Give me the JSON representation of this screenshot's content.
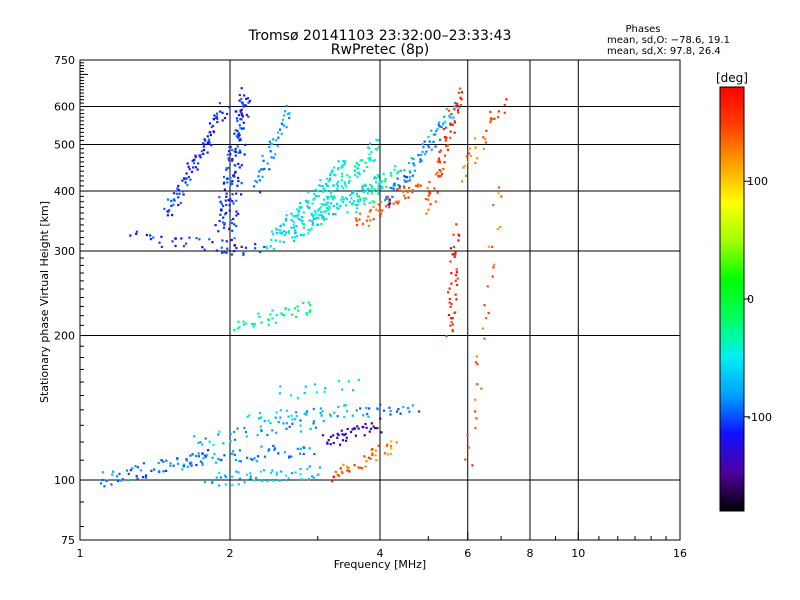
{
  "chart_data": {
    "type": "scatter",
    "title": "Tromsø 20141103 23:32:00–23:33:43",
    "subtitle": "RwPretec (8p)",
    "xlabel": "Frequency [MHz]",
    "ylabel": "Stationary phase Virtual Height [km]",
    "x_scale": "log",
    "y_scale": "log",
    "xlim": [
      1,
      16
    ],
    "ylim": [
      75,
      750
    ],
    "x_ticks": [
      1,
      2,
      4,
      6,
      8,
      10,
      16
    ],
    "y_ticks": [
      75,
      100,
      200,
      300,
      400,
      500,
      600,
      750
    ],
    "grid": true,
    "stats": {
      "heading": "Phases",
      "line1": "mean, sd,O:  −78.6, 19.1",
      "line2": "mean, sd,X:  97.8, 26.4"
    },
    "colorbar": {
      "label": "[deg]",
      "ticks": [
        100,
        0,
        -100
      ],
      "range": [
        -180,
        180
      ],
      "colors": [
        "#000000",
        "#5000a0",
        "#1010ff",
        "#00a0ff",
        "#00f0f0",
        "#00ff60",
        "#00ff00",
        "#a0ff00",
        "#ffff00",
        "#ffa000",
        "#ff4000",
        "#ff0000"
      ]
    },
    "series": [
      {
        "x": [
          1.29,
          2.34
        ],
        "y": [
          320,
          300
        ],
        "values": [
          -110,
          -110
        ],
        "n": 40
      },
      {
        "x": [
          1.5,
          1.95
        ],
        "y": [
          360,
          600
        ],
        "values": [
          -105,
          -115
        ],
        "n": 90
      },
      {
        "x": [
          1.9,
          2.12
        ],
        "y": [
          330,
          630
        ],
        "values": [
          -110,
          -100
        ],
        "n": 80
      },
      {
        "x": [
          2.0,
          2.15
        ],
        "y": [
          300,
          650
        ],
        "values": [
          -100,
          -120
        ],
        "n": 70
      },
      {
        "x": [
          2.25,
          2.62
        ],
        "y": [
          400,
          600
        ],
        "values": [
          -90,
          -80
        ],
        "n": 40
      },
      {
        "x": [
          2.4,
          3.4
        ],
        "y": [
          310,
          460
        ],
        "values": [
          -55,
          -50
        ],
        "n": 100
      },
      {
        "x": [
          2.6,
          4.0
        ],
        "y": [
          320,
          420
        ],
        "values": [
          -55,
          -45
        ],
        "n": 100
      },
      {
        "x": [
          2.9,
          4.0
        ],
        "y": [
          350,
          500
        ],
        "values": [
          -45,
          -40
        ],
        "n": 80
      },
      {
        "x": [
          3.5,
          4.3
        ],
        "y": [
          360,
          440
        ],
        "values": [
          -40,
          -30
        ],
        "n": 40
      },
      {
        "x": [
          3.6,
          4.8
        ],
        "y": [
          340,
          420
        ],
        "values": [
          130,
          150
        ],
        "n": 50
      },
      {
        "x": [
          4.1,
          5.7
        ],
        "y": [
          380,
          600
        ],
        "values": [
          -90,
          -75
        ],
        "n": 80
      },
      {
        "x": [
          5.0,
          5.8
        ],
        "y": [
          370,
          640
        ],
        "values": [
          140,
          160
        ],
        "n": 60
      },
      {
        "x": [
          5.8,
          7.1
        ],
        "y": [
          430,
          620
        ],
        "values": [
          125,
          150
        ],
        "n": 30
      },
      {
        "x": [
          2.05,
          2.95
        ],
        "y": [
          210,
          230
        ],
        "values": [
          -40,
          -20
        ],
        "n": 40
      },
      {
        "x": [
          1.1,
          1.8
        ],
        "y": [
          100,
          112
        ],
        "values": [
          -90,
          -90
        ],
        "n": 60
      },
      {
        "x": [
          1.8,
          3.05
        ],
        "y": [
          100,
          104
        ],
        "values": [
          -70,
          -60
        ],
        "n": 50
      },
      {
        "x": [
          1.65,
          2.9
        ],
        "y": [
          110,
          116
        ],
        "values": [
          -80,
          -90
        ],
        "n": 50
      },
      {
        "x": [
          1.7,
          3.05
        ],
        "y": [
          120,
          132
        ],
        "values": [
          -70,
          -80
        ],
        "n": 40
      },
      {
        "x": [
          2.2,
          4.7
        ],
        "y": [
          135,
          142
        ],
        "values": [
          -60,
          -90
        ],
        "n": 60
      },
      {
        "x": [
          3.1,
          4.0
        ],
        "y": [
          120,
          130
        ],
        "values": [
          -130,
          -140
        ],
        "n": 40
      },
      {
        "x": [
          3.2,
          4.3
        ],
        "y": [
          102,
          118
        ],
        "values": [
          150,
          120
        ],
        "n": 40
      },
      {
        "x": [
          2.5,
          3.6
        ],
        "y": [
          152,
          158
        ],
        "values": [
          -60,
          -50
        ],
        "n": 15
      },
      {
        "x": [
          5.5,
          5.7
        ],
        "y": [
          200,
          330
        ],
        "values": [
          160,
          165
        ],
        "n": 40
      },
      {
        "x": [
          6.0,
          7.0
        ],
        "y": [
          105,
          420
        ],
        "values": [
          140,
          130
        ],
        "n": 30
      }
    ]
  }
}
